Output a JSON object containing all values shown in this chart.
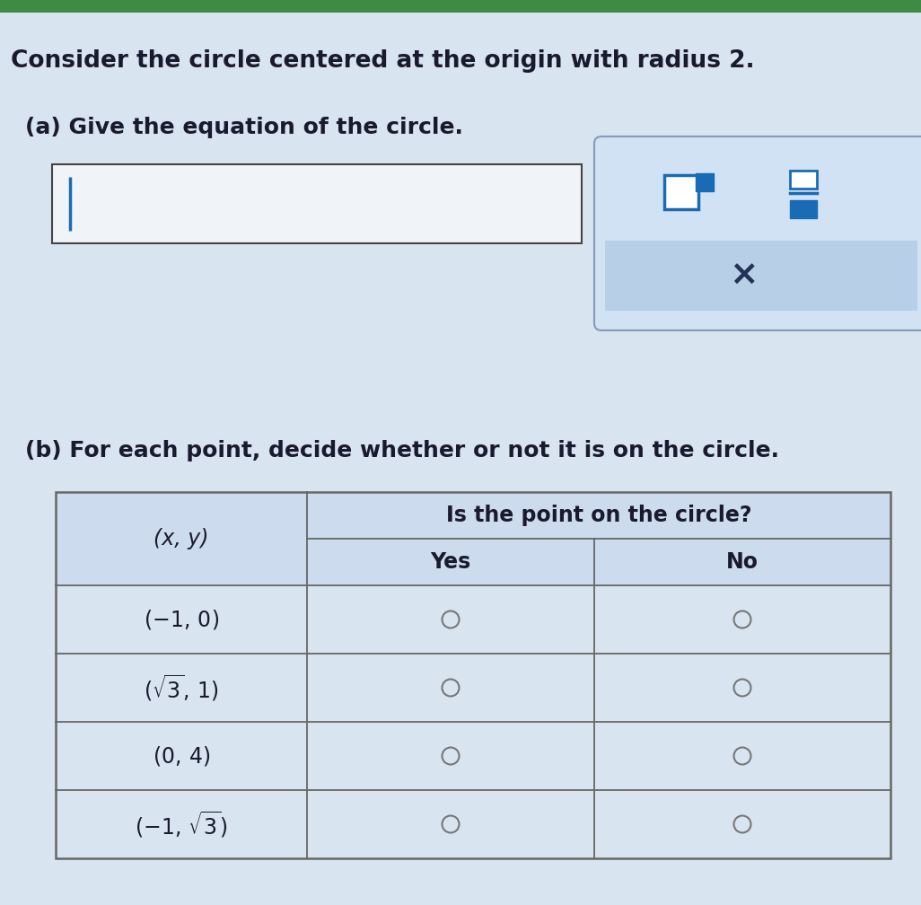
{
  "bg_color": "#d8e4f0",
  "top_bar_color": "#3d8b45",
  "title_text": "Consider the circle centered at the origin with radius 2.",
  "part_a_text": "(a) Give the equation of the circle.",
  "part_b_text": "(b) For each point, decide whether or not it is on the circle.",
  "input_box_color": "#f0f4f8",
  "input_box_border": "#444444",
  "cursor_color": "#1a6bb5",
  "toolbar_bg": "#d0e2f3",
  "toolbar_border": "#8899bb",
  "icon_color": "#1a6bb5",
  "x_box_color": "#b8cfe8",
  "x_text_color": "#223355",
  "table_bg_header": "#c8daeebb",
  "table_bg_body": "#d8e4f0",
  "table_border": "#666666",
  "table_header1": "Is the point on the circle?",
  "table_col1_header": "(x, y)",
  "table_col2_header": "Yes",
  "table_col3_header": "No",
  "table_rows": [
    "(-1, 0)",
    "sqrt3_1",
    "(0, 4)",
    "neg1_sqrt3"
  ],
  "radio_color": "#777777",
  "font_color": "#1a1a2e",
  "title_fontsize": 19,
  "body_fontsize": 18
}
